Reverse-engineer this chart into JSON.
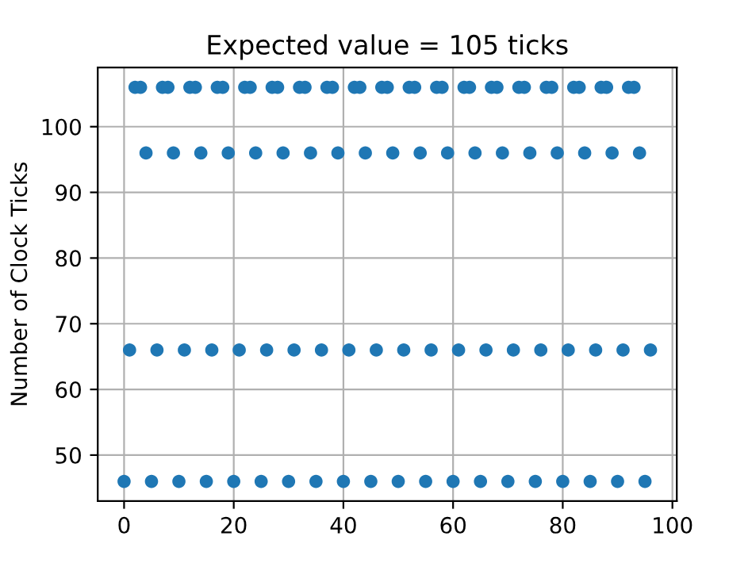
{
  "chart_data": {
    "type": "scatter",
    "title": "Expected value = 105 ticks",
    "ylabel": "Number of Clock Ticks",
    "x": [
      0,
      1,
      2,
      3,
      4,
      5,
      6,
      7,
      8,
      9,
      10,
      11,
      12,
      13,
      14,
      15,
      16,
      17,
      18,
      19,
      20,
      21,
      22,
      23,
      24,
      25,
      26,
      27,
      28,
      29,
      30,
      31,
      32,
      33,
      34,
      35,
      36,
      37,
      38,
      39,
      40,
      41,
      42,
      43,
      44,
      45,
      46,
      47,
      48,
      49,
      50,
      51,
      52,
      53,
      54,
      55,
      56,
      57,
      58,
      59,
      60,
      61,
      62,
      63,
      64,
      65,
      66,
      67,
      68,
      69,
      70,
      71,
      72,
      73,
      74,
      75,
      76,
      77,
      78,
      79,
      80,
      81,
      82,
      83,
      84,
      85,
      86,
      87,
      88,
      89,
      90,
      91,
      92,
      93,
      94,
      95,
      96
    ],
    "series": [
      {
        "color": "#1f77b4",
        "values": [
          46,
          66,
          106,
          106,
          96,
          46,
          66,
          106,
          106,
          96,
          46,
          66,
          106,
          106,
          96,
          46,
          66,
          106,
          106,
          96,
          46,
          66,
          106,
          106,
          96,
          46,
          66,
          106,
          106,
          96,
          46,
          66,
          106,
          106,
          96,
          46,
          66,
          106,
          106,
          96,
          46,
          66,
          106,
          106,
          96,
          46,
          66,
          106,
          106,
          96,
          46,
          66,
          106,
          106,
          96,
          46,
          66,
          106,
          106,
          96,
          46,
          66,
          106,
          106,
          96,
          46,
          66,
          106,
          106,
          96,
          46,
          66,
          106,
          106,
          96,
          46,
          66,
          106,
          106,
          96,
          46,
          66,
          106,
          106,
          96,
          46,
          66,
          106,
          106,
          96,
          46,
          66,
          106,
          106,
          96,
          46,
          66
        ]
      }
    ],
    "xlim": [
      -4.8,
      100.8
    ],
    "xticks": [
      0,
      20,
      40,
      60,
      80,
      100
    ],
    "ylim": [
      43,
      109
    ],
    "yticks": [
      50,
      60,
      70,
      80,
      90,
      100
    ],
    "marker": "circle",
    "grid": true,
    "legend": false
  }
}
